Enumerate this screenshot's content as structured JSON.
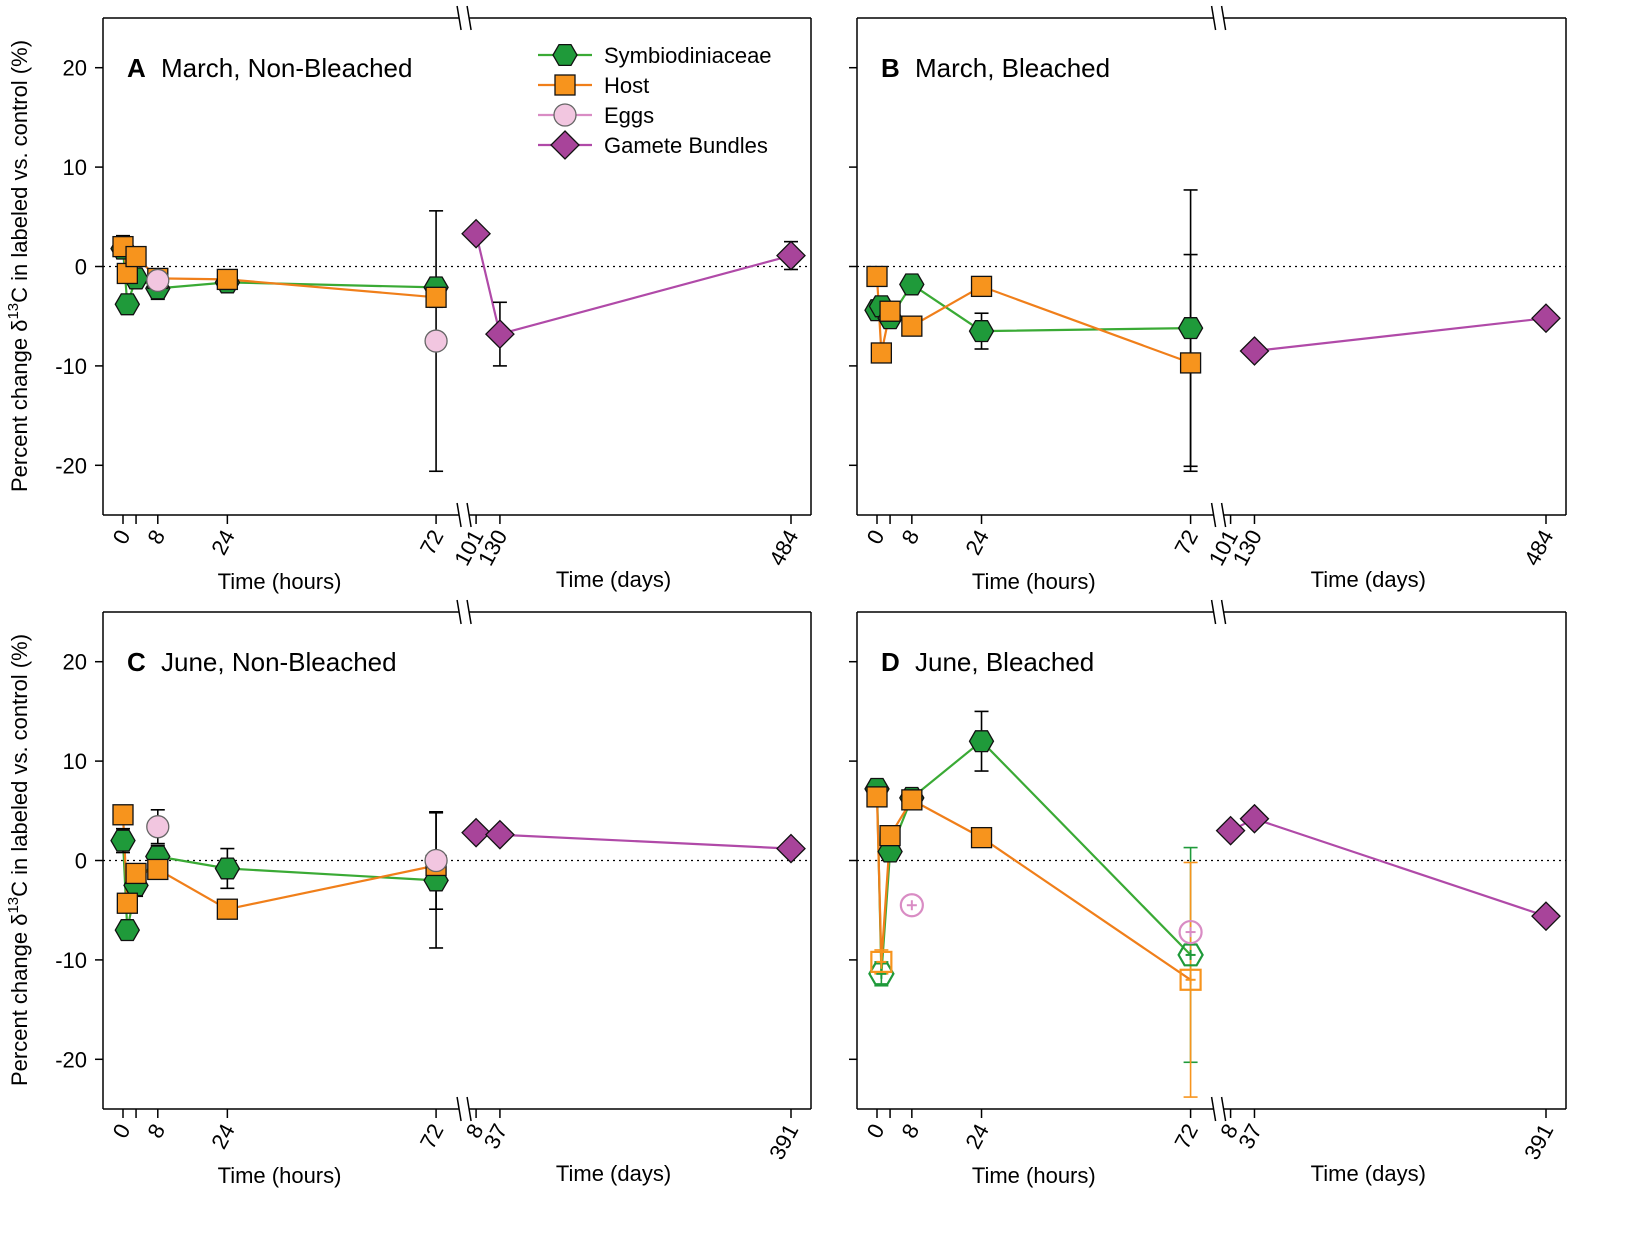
{
  "y_axis_label_pre": "Percent change δ",
  "y_axis_label_sup": "13",
  "y_axis_label_post": "C in labeled vs. control (%)",
  "colors": {
    "symbio": "#1f9a3a",
    "symbio_line": "#3aaa35",
    "host": "#f7941d",
    "host_line": "#f07f1a",
    "eggs": "#f2c6e0",
    "eggs_stroke": "#d98cc4",
    "gamete": "#a8449a",
    "gamete_line": "#b04aa8"
  },
  "legend": {
    "symbio": "Symbiodiniaceae",
    "host": "Host",
    "eggs": "Eggs",
    "gamete": "Gamete Bundles"
  },
  "chart_data": [
    {
      "type": "scatter",
      "letter": "A",
      "title": "March, Non-Bleached",
      "xlabel_hours": "Time (hours)",
      "xlabel_days": "Time (days)",
      "ylim": [
        -25,
        25
      ],
      "yticks": [
        20,
        10,
        0,
        -10,
        -20
      ],
      "hours_ticks": [
        "0",
        "8",
        "24",
        "72"
      ],
      "days_ticks": [
        "101",
        "130",
        "484"
      ],
      "series": [
        {
          "name": "Symbiodiniaceae",
          "kind": "symbio",
          "points": [
            {
              "x": 0,
              "y": 1.8,
              "err": 1.0
            },
            {
              "x": 1,
              "y": -3.8,
              "err": 0.6
            },
            {
              "x": 3,
              "y": -1.2,
              "err": 0.8
            },
            {
              "x": 8,
              "y": -2.2,
              "err": 1.1
            },
            {
              "x": 24,
              "y": -1.6,
              "err": 0.6
            },
            {
              "x": 72,
              "y": -2.1,
              "err": 0.8
            }
          ]
        },
        {
          "name": "Host",
          "kind": "host",
          "points": [
            {
              "x": 0,
              "y": 2.0,
              "err": 1.1
            },
            {
              "x": 1,
              "y": -0.7,
              "err": 0.6
            },
            {
              "x": 3,
              "y": 1.0,
              "err": 0.7
            },
            {
              "x": 8,
              "y": -1.2,
              "err": 0.5
            },
            {
              "x": 24,
              "y": -1.3,
              "err": 0.5
            },
            {
              "x": 72,
              "y": -3.1,
              "err": 1.0
            }
          ]
        },
        {
          "name": "Eggs",
          "kind": "eggs",
          "line": false,
          "points": [
            {
              "x": 8,
              "y": -1.4,
              "err": 0.6
            },
            {
              "x": 72,
              "y": -7.5,
              "err": 13.1
            }
          ]
        },
        {
          "name": "Gamete Bundles",
          "kind": "gamete",
          "points": [
            {
              "x": 101,
              "y": 3.3,
              "err": 0.4
            },
            {
              "x": 130,
              "y": -6.8,
              "err": 3.2
            },
            {
              "x": 484,
              "y": 1.1,
              "err": 1.4
            }
          ]
        }
      ]
    },
    {
      "type": "scatter",
      "letter": "B",
      "title": "March, Bleached",
      "xlabel_hours": "Time (hours)",
      "xlabel_days": "Time (days)",
      "ylim": [
        -25,
        25
      ],
      "yticks": [
        20,
        10,
        0,
        -10,
        -20
      ],
      "hours_ticks": [
        "0",
        "8",
        "24",
        "72"
      ],
      "days_ticks": [
        "101",
        "130",
        "484"
      ],
      "series": [
        {
          "name": "Symbiodiniaceae",
          "kind": "symbio",
          "points": [
            {
              "x": 0,
              "y": -4.4,
              "err": 0.6
            },
            {
              "x": 1,
              "y": -4.0,
              "err": 0.6
            },
            {
              "x": 3,
              "y": -5.2,
              "err": 0.6
            },
            {
              "x": 8,
              "y": -1.8,
              "err": 0.5
            },
            {
              "x": 24,
              "y": -6.5,
              "err": 1.8
            },
            {
              "x": 72,
              "y": -6.2,
              "err": 13.9
            }
          ]
        },
        {
          "name": "Host",
          "kind": "host",
          "points": [
            {
              "x": 0,
              "y": -1.0,
              "err": 0.4
            },
            {
              "x": 1,
              "y": -8.7,
              "err": 0.5
            },
            {
              "x": 3,
              "y": -4.5,
              "err": 0.5
            },
            {
              "x": 8,
              "y": -6.0,
              "err": 0.8
            },
            {
              "x": 24,
              "y": -2.0,
              "err": 0.5
            },
            {
              "x": 72,
              "y": -9.7,
              "err": 10.9
            }
          ]
        },
        {
          "name": "Gamete Bundles",
          "kind": "gamete",
          "points": [
            {
              "x": 130,
              "y": -8.5,
              "err": 0.3
            },
            {
              "x": 484,
              "y": -5.2,
              "err": 0.3
            }
          ]
        }
      ]
    },
    {
      "type": "scatter",
      "letter": "C",
      "title": "June, Non-Bleached",
      "xlabel_hours": "Time (hours)",
      "xlabel_days": "Time (days)",
      "ylim": [
        -25,
        25
      ],
      "yticks": [
        20,
        10,
        0,
        -10,
        -20
      ],
      "hours_ticks": [
        "0",
        "8",
        "24",
        "72"
      ],
      "days_ticks": [
        "8",
        "37",
        "391"
      ],
      "series": [
        {
          "name": "Symbiodiniaceae",
          "kind": "symbio",
          "points": [
            {
              "x": 0,
              "y": 2.0,
              "err": 1.2
            },
            {
              "x": 1,
              "y": -7.0,
              "err": 0.8
            },
            {
              "x": 3,
              "y": -2.5,
              "err": 1.1
            },
            {
              "x": 8,
              "y": 0.4,
              "err": 1.1
            },
            {
              "x": 24,
              "y": -0.8,
              "err": 2.0
            },
            {
              "x": 72,
              "y": -2.0,
              "err": 6.8
            }
          ]
        },
        {
          "name": "Host",
          "kind": "host",
          "points": [
            {
              "x": 0,
              "y": 4.6,
              "err": 0.5
            },
            {
              "x": 1,
              "y": -4.3,
              "err": 0.5
            },
            {
              "x": 3,
              "y": -1.3,
              "err": 0.5
            },
            {
              "x": 8,
              "y": -0.9,
              "err": 0.5
            },
            {
              "x": 24,
              "y": -4.9,
              "err": 0.4
            },
            {
              "x": 72,
              "y": -0.5,
              "err": 0.5
            }
          ]
        },
        {
          "name": "Eggs",
          "kind": "eggs",
          "line": false,
          "points": [
            {
              "x": 8,
              "y": 3.4,
              "err": 1.7
            },
            {
              "x": 72,
              "y": 0.0,
              "err": 4.9
            }
          ]
        },
        {
          "name": "Gamete Bundles",
          "kind": "gamete",
          "points": [
            {
              "x": 8,
              "y": 2.8,
              "err": 0.3
            },
            {
              "x": 37,
              "y": 2.6,
              "err": 0.3
            },
            {
              "x": 391,
              "y": 1.2,
              "err": 0.3
            }
          ]
        }
      ]
    },
    {
      "type": "scatter",
      "letter": "D",
      "title": "June, Bleached",
      "xlabel_hours": "Time (hours)",
      "xlabel_days": "Time (days)",
      "ylim": [
        -25,
        25
      ],
      "yticks": [
        20,
        10,
        0,
        -10,
        -20
      ],
      "hours_ticks": [
        "0",
        "8",
        "24",
        "72"
      ],
      "days_ticks": [
        "8",
        "37",
        "391"
      ],
      "series": [
        {
          "name": "Symbiodiniaceae",
          "kind": "symbio",
          "points": [
            {
              "x": 0,
              "y": 7.2,
              "err": 0.5
            },
            {
              "x": 1,
              "y": -11.4,
              "err": 1.2,
              "open": true
            },
            {
              "x": 3,
              "y": 0.9,
              "err": 0.6
            },
            {
              "x": 8,
              "y": 6.3,
              "err": 0.5
            },
            {
              "x": 24,
              "y": 12.0,
              "err": 3.0
            },
            {
              "x": 72,
              "y": -9.5,
              "err": 10.8,
              "open": true
            }
          ]
        },
        {
          "name": "Host",
          "kind": "host",
          "points": [
            {
              "x": 0,
              "y": 6.4,
              "err": 0.4
            },
            {
              "x": 1,
              "y": -10.2,
              "err": 1.2,
              "open": true
            },
            {
              "x": 3,
              "y": 2.5,
              "err": 0.5
            },
            {
              "x": 8,
              "y": 6.1,
              "err": 0.5
            },
            {
              "x": 24,
              "y": 2.3,
              "err": 0.4
            },
            {
              "x": 72,
              "y": -12.0,
              "err": 11.8,
              "open": true
            }
          ]
        },
        {
          "name": "Eggs",
          "kind": "eggs",
          "line": false,
          "points": [
            {
              "x": 8,
              "y": -4.5,
              "err": 0.0,
              "open": true
            },
            {
              "x": 72,
              "y": -7.2,
              "err": 0.0,
              "open": true
            }
          ]
        },
        {
          "name": "Gamete Bundles",
          "kind": "gamete",
          "points": [
            {
              "x": 8,
              "y": 3.0,
              "err": 0.3
            },
            {
              "x": 37,
              "y": 4.2,
              "err": 0.3
            },
            {
              "x": 391,
              "y": -5.6,
              "err": 0.3
            }
          ]
        }
      ]
    }
  ]
}
